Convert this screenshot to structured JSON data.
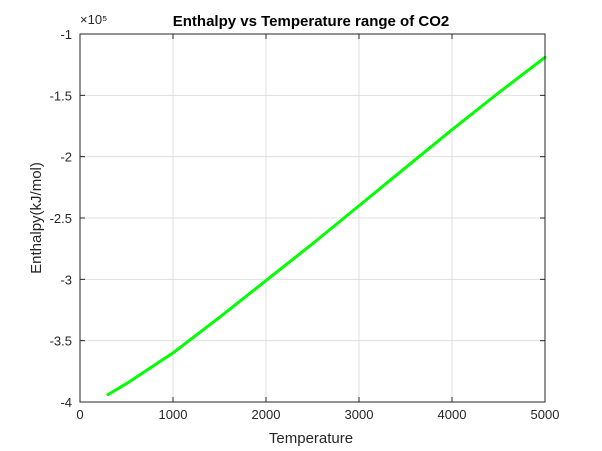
{
  "chart_data": {
    "type": "line",
    "title": "Enthalpy vs Temperature range of CO2",
    "xlabel": "Temperature",
    "ylabel": "Enthalpy(kJ/mol)",
    "xlim": [
      0,
      5000
    ],
    "ylim": [
      -400000,
      -100000
    ],
    "x_ticks": [
      0,
      1000,
      2000,
      3000,
      4000,
      5000
    ],
    "x_tick_labels": [
      "0",
      "1000",
      "2000",
      "3000",
      "4000",
      "5000"
    ],
    "y_ticks": [
      -400000,
      -350000,
      -300000,
      -250000,
      -200000,
      -150000,
      -100000
    ],
    "y_tick_labels": [
      "-4",
      "-3.5",
      "-3",
      "-2.5",
      "-2",
      "-1.5",
      "-1"
    ],
    "y_exponent_label": "×10⁵",
    "grid": true,
    "series": [
      {
        "color": "#00ff00",
        "x": [
          300,
          500,
          1000,
          1500,
          2000,
          2500,
          3000,
          3500,
          4000,
          4500,
          5000
        ],
        "y": [
          -394000,
          -385000,
          -360000,
          -331000,
          -301000,
          -271000,
          -240000,
          -209000,
          -178000,
          -148000,
          -119000
        ]
      }
    ]
  }
}
